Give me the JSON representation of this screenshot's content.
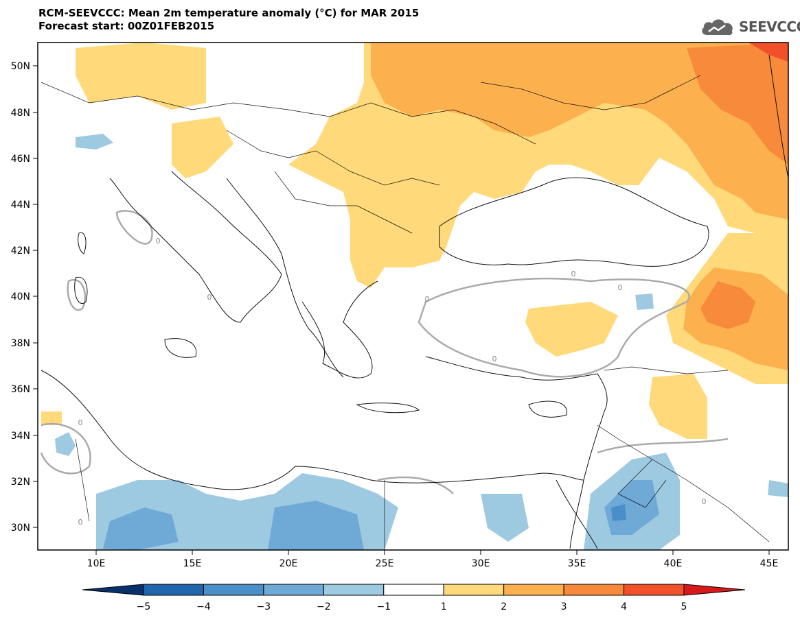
{
  "header": {
    "title": "RCM-SEEVCCC: Mean 2m temperature anomaly (°C) for MAR 2015",
    "subtitle": "Forecast start: 00Z01FEB2015"
  },
  "logo": {
    "text": "SEEVCCC",
    "icon": "cloud-icon"
  },
  "map": {
    "lat_labels": [
      "50N",
      "48N",
      "46N",
      "44N",
      "42N",
      "40N",
      "38N",
      "36N",
      "34N",
      "32N",
      "30N"
    ],
    "lon_labels": [
      "10E",
      "15E",
      "20E",
      "25E",
      "30E",
      "35E",
      "40E",
      "45E"
    ],
    "contour_label": "0"
  },
  "colorbar": {
    "labels": [
      "−5",
      "−4",
      "−3",
      "−2",
      "−1",
      "1",
      "2",
      "3",
      "4",
      "5"
    ],
    "colors": [
      "#08306b",
      "#2166ac",
      "#4a8fc8",
      "#6fa9d6",
      "#9ecae1",
      "#ffffff",
      "#ffd97a",
      "#fdb14e",
      "#f88a3c",
      "#f2502a",
      "#d7191c"
    ]
  }
}
